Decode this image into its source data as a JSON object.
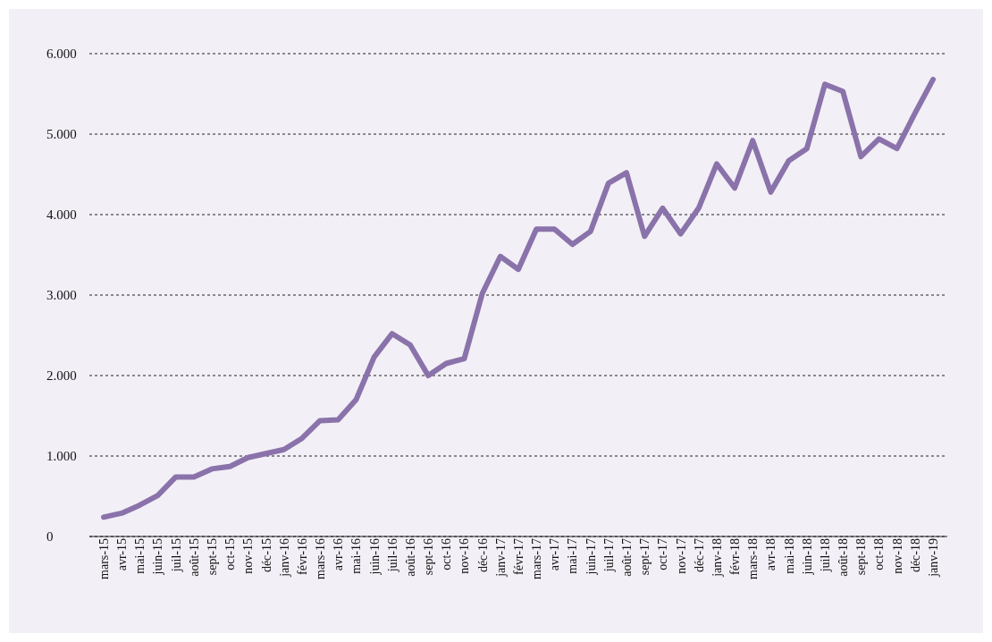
{
  "chart_data": {
    "type": "line",
    "categories": [
      "mars-15",
      "avr-15",
      "mai-15",
      "juin-15",
      "juil-15",
      "août-15",
      "sept-15",
      "oct-15",
      "nov-15",
      "déc-15",
      "janv-16",
      "févr-16",
      "mars-16",
      "avr-16",
      "mai-16",
      "juin-16",
      "juil-16",
      "août-16",
      "sept-16",
      "oct-16",
      "nov-16",
      "déc-16",
      "janv-17",
      "févr-17",
      "mars-17",
      "avr-17",
      "mai-17",
      "juin-17",
      "juil-17",
      "août-17",
      "sept-17",
      "oct-17",
      "nov-17",
      "déc-17",
      "janv-18",
      "févr-18",
      "mars-18",
      "avr-18",
      "mai-18",
      "juin-18",
      "juil-18",
      "août-18",
      "sept-18",
      "oct-18",
      "nov-18",
      "déc-18",
      "janv-19"
    ],
    "series": [
      {
        "color": "#8a72aa",
        "values": [
          240,
          290,
          390,
          510,
          740,
          740,
          840,
          870,
          980,
          1030,
          1080,
          1220,
          1440,
          1450,
          1700,
          2230,
          2520,
          2380,
          2000,
          2150,
          2210,
          3020,
          3480,
          3320,
          3820,
          3820,
          3630,
          3790,
          4390,
          4520,
          3730,
          4080,
          3760,
          4080,
          4630,
          4330,
          4920,
          4280,
          4670,
          4820,
          5620,
          5530,
          4720,
          4940,
          4820,
          5260,
          5680
        ]
      }
    ],
    "ylim": [
      0,
      6000
    ],
    "yticks": [
      {
        "value": 0,
        "label": "0"
      },
      {
        "value": 1000,
        "label": "1.000"
      },
      {
        "value": 2000,
        "label": "2.000"
      },
      {
        "value": 3000,
        "label": "3.000"
      },
      {
        "value": 4000,
        "label": "4.000"
      },
      {
        "value": 5000,
        "label": "5.000"
      },
      {
        "value": 6000,
        "label": "6.000"
      }
    ],
    "grid": "y",
    "legend": false,
    "marker": "none",
    "line_style": "solid"
  }
}
